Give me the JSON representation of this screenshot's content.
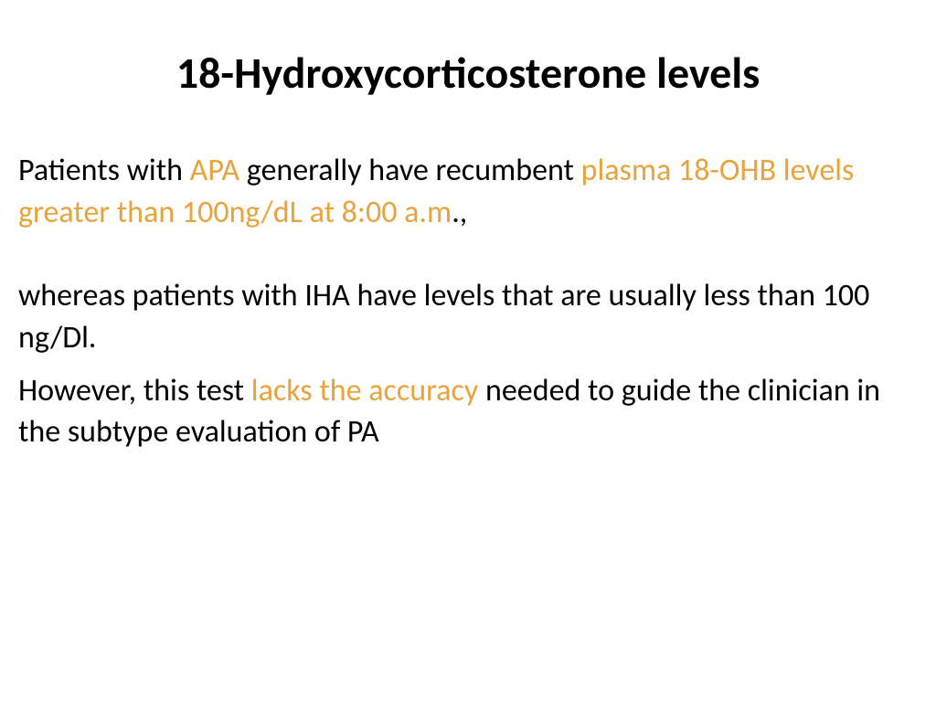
{
  "slide": {
    "title": "18-Hydroxycorticosterone levels",
    "para1": {
      "seg1": "Patients with ",
      "seg2": "APA",
      "seg3": " generally have recumbent ",
      "seg4": "plasma 18-OHB levels greater than 100ng/dL at 8:00 a.m",
      "seg5": ".,"
    },
    "para2": "whereas patients with IHA have levels that are usually less than 100 ng/Dl.",
    "para3": {
      "seg1": "However, this test ",
      "seg2": "lacks the accuracy",
      "seg3": " needed to guide the clinician in the subtype evaluation of PA"
    }
  },
  "colors": {
    "text": "#000000",
    "highlight": "#e8a33d",
    "background": "#ffffff"
  },
  "typography": {
    "title_fontsize": 48,
    "title_weight": "bold",
    "body_fontsize": 34,
    "font_family": "Calibri"
  }
}
